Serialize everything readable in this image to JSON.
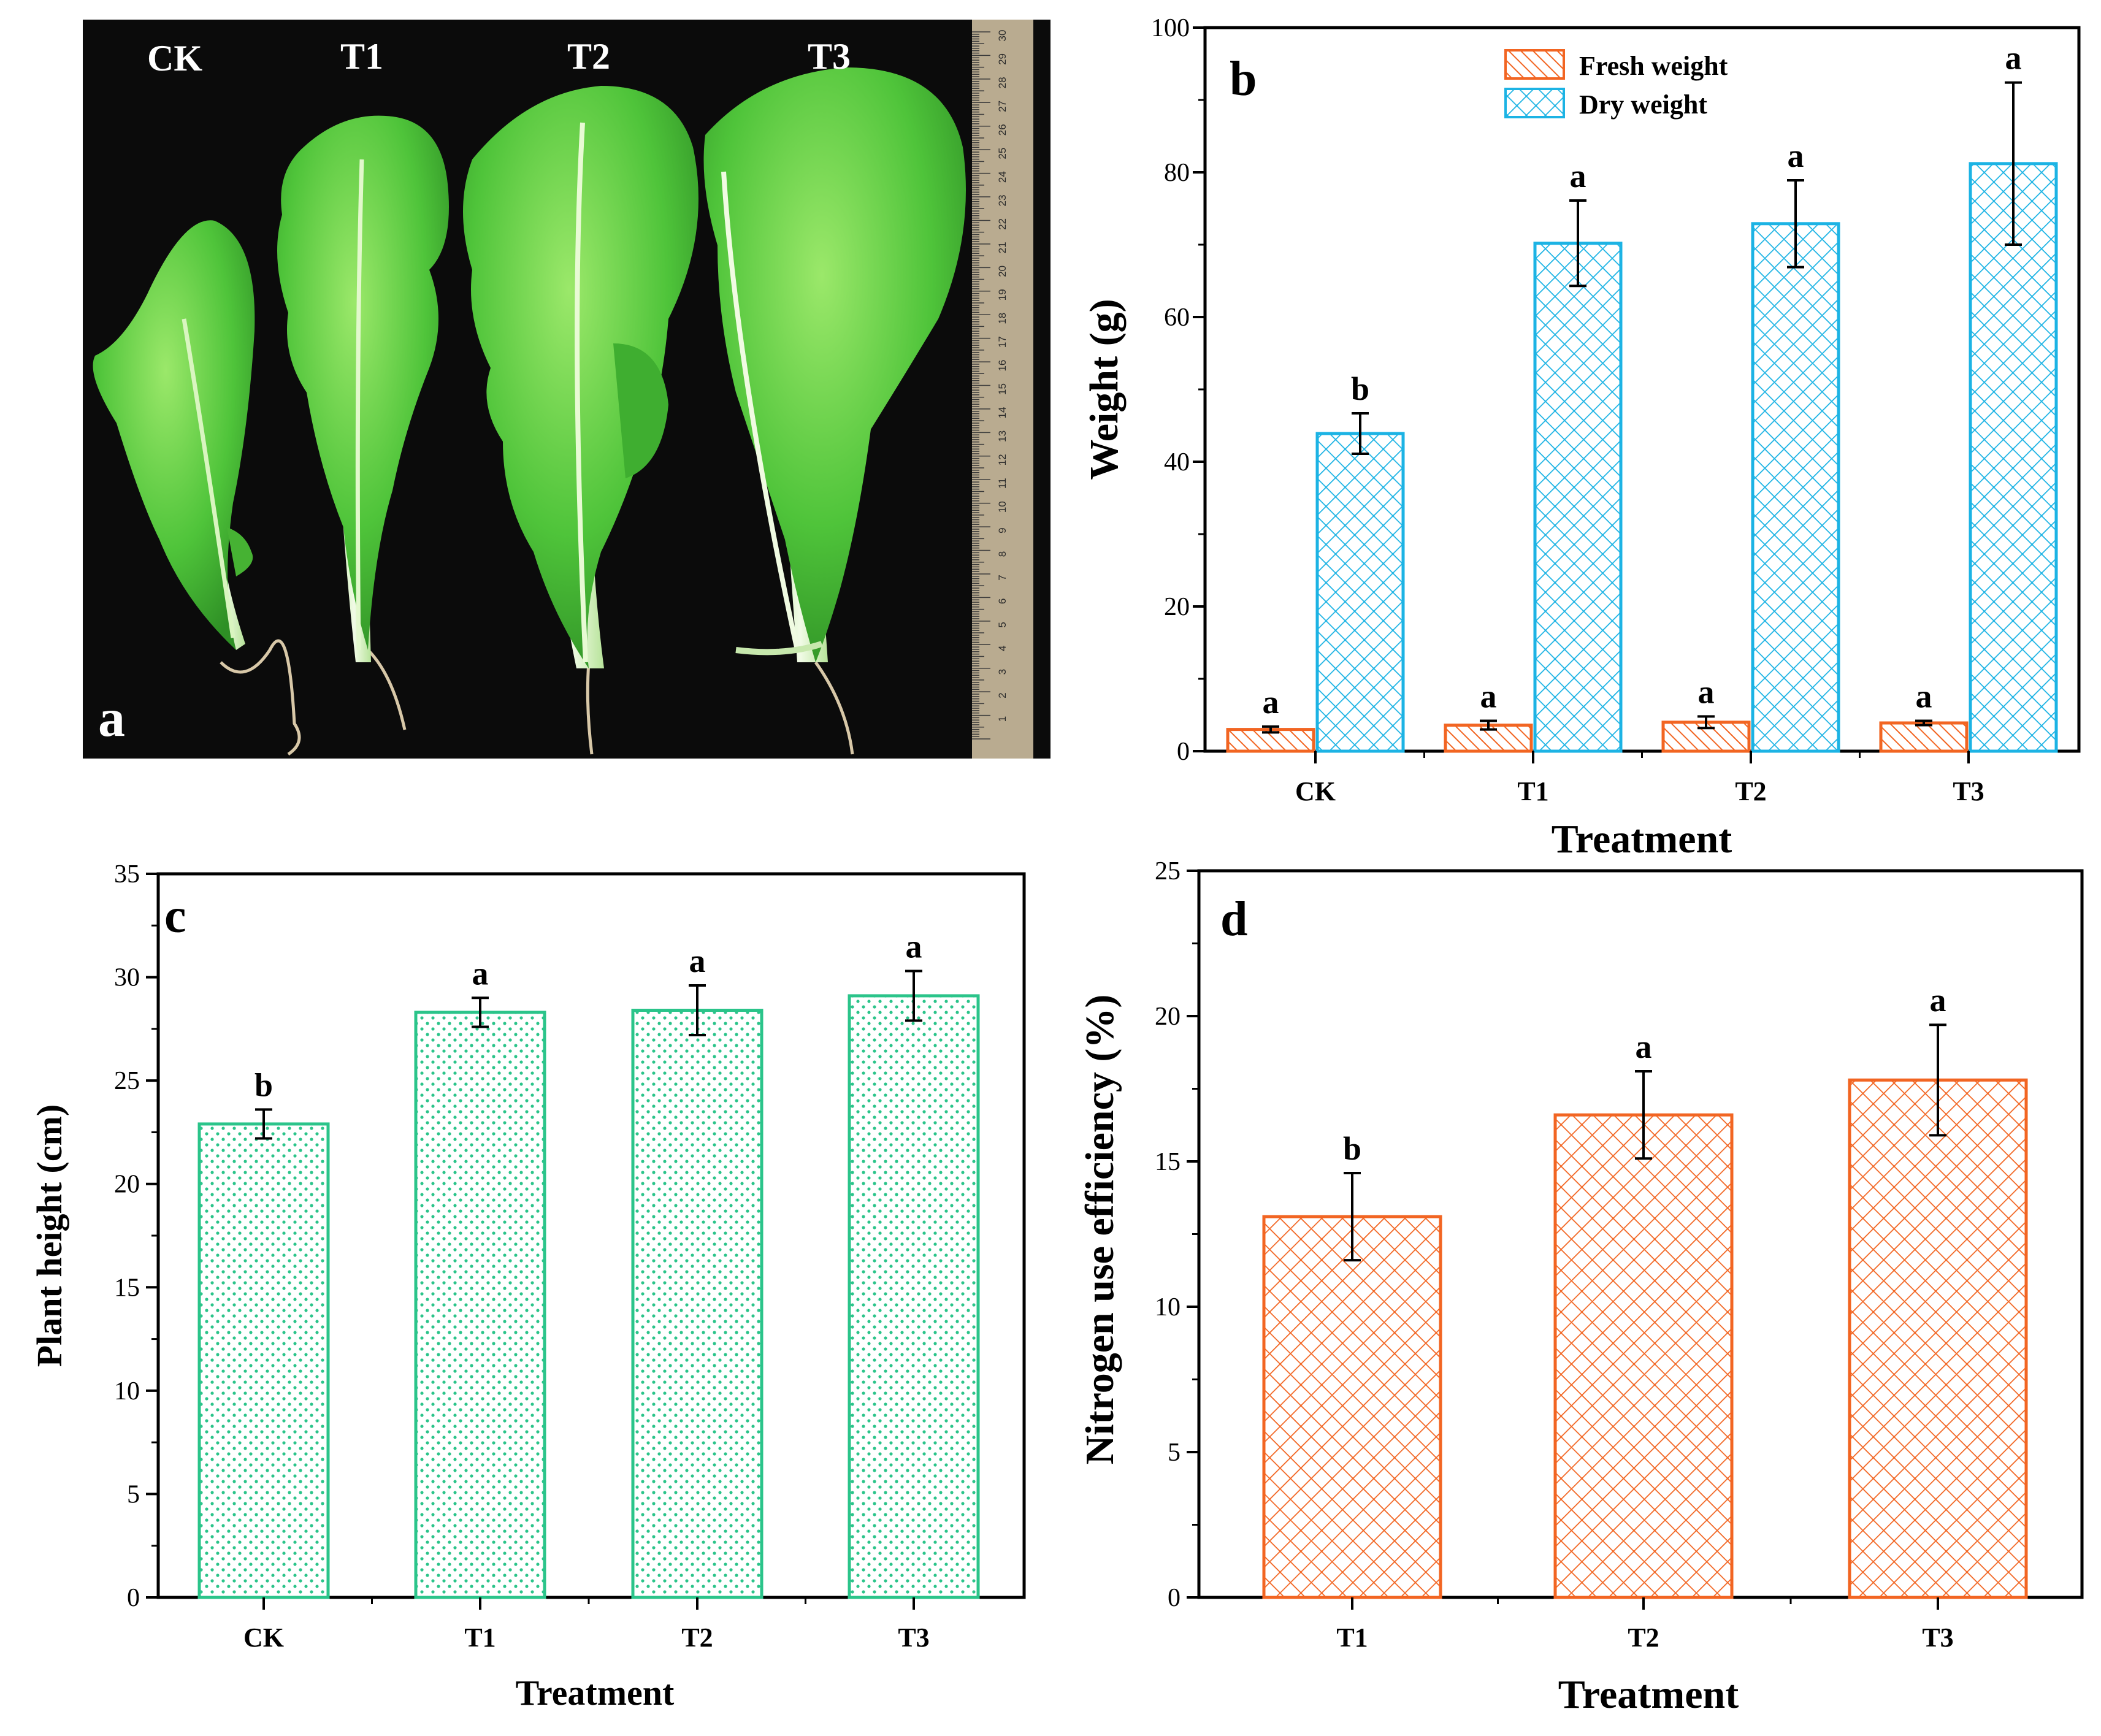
{
  "panel_a": {
    "panel_label": "a",
    "plant_labels": [
      "CK",
      "T1",
      "T2",
      "T3"
    ],
    "ruler_numbers": [
      "1",
      "2",
      "3",
      "4",
      "5",
      "6",
      "7",
      "8",
      "9",
      "10",
      "11",
      "12",
      "13",
      "14",
      "15",
      "16",
      "17",
      "18",
      "19",
      "20",
      "21",
      "22",
      "23",
      "24",
      "25",
      "26",
      "27",
      "28",
      "29",
      "30"
    ]
  },
  "chart_data": [
    {
      "panel_label": "b",
      "type": "bar",
      "xlabel": "Treatment",
      "ylabel": "Weight (g)",
      "ylim": [
        0,
        100
      ],
      "yticks": [
        0,
        20,
        40,
        60,
        80,
        100
      ],
      "categories": [
        "CK",
        "T1",
        "T2",
        "T3"
      ],
      "legend_position": "top-center",
      "series": [
        {
          "name": "Fresh weight",
          "values": [
            3.0,
            3.6,
            4.0,
            3.9
          ],
          "errors": [
            0.4,
            0.6,
            0.8,
            0.3
          ],
          "significance": [
            "a",
            "a",
            "a",
            "a"
          ],
          "color": "#f26522",
          "pattern": "diagonal-hatch"
        },
        {
          "name": "Dry weight",
          "values": [
            43.9,
            70.2,
            72.9,
            81.2
          ],
          "errors": [
            2.8,
            5.9,
            6.0,
            11.2
          ],
          "significance": [
            "b",
            "a",
            "a",
            "a"
          ],
          "color": "#1cb3e4",
          "pattern": "crosshatch"
        }
      ]
    },
    {
      "panel_label": "c",
      "type": "bar",
      "xlabel": "Treatment",
      "ylabel": "Plant height (cm)",
      "ylim": [
        0,
        35
      ],
      "yticks": [
        0,
        5,
        10,
        15,
        20,
        25,
        30,
        35
      ],
      "categories": [
        "CK",
        "T1",
        "T2",
        "T3"
      ],
      "series": [
        {
          "values": [
            22.9,
            28.3,
            28.4,
            29.1
          ],
          "errors": [
            0.7,
            0.7,
            1.2,
            1.2
          ],
          "significance": [
            "b",
            "a",
            "a",
            "a"
          ],
          "color": "#2bc48a",
          "pattern": "dots"
        }
      ]
    },
    {
      "panel_label": "d",
      "type": "bar",
      "xlabel": "Treatment",
      "ylabel": "Nitrogen use efficiency (%)",
      "ylim": [
        0,
        25
      ],
      "yticks": [
        0,
        5,
        10,
        15,
        20,
        25
      ],
      "categories": [
        "T1",
        "T2",
        "T3"
      ],
      "series": [
        {
          "values": [
            13.1,
            16.6,
            17.8
          ],
          "errors": [
            1.5,
            1.5,
            1.9
          ],
          "significance": [
            "b",
            "a",
            "a"
          ],
          "color": "#f26522",
          "pattern": "crosshatch"
        }
      ]
    }
  ]
}
